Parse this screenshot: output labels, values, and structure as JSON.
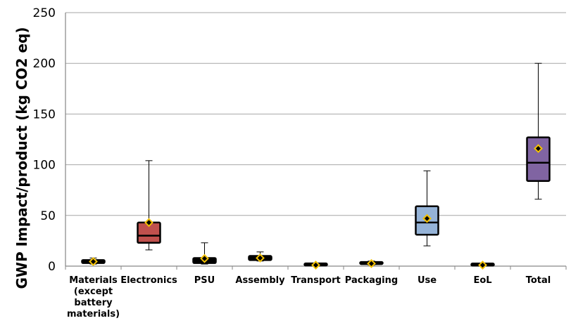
{
  "chart_data": {
    "type": "box",
    "ylabel": "GWP Impact/product (kg CO2 eq)",
    "xlabel": "",
    "ylim": [
      0,
      250
    ],
    "yticks": [
      0,
      50,
      100,
      150,
      200,
      250
    ],
    "grid": true,
    "categories": [
      "Materials (except battery materials)",
      "Electronics",
      "PSU",
      "Assembly",
      "Transport",
      "Packaging",
      "Use",
      "EoL",
      "Total"
    ],
    "category_lines": [
      [
        "Materials",
        "(except",
        "battery",
        "materials)"
      ],
      [
        "Electronics"
      ],
      [
        "PSU"
      ],
      [
        "Assembly"
      ],
      [
        "Transport"
      ],
      [
        "Packaging"
      ],
      [
        "Use"
      ],
      [
        "EoL"
      ],
      [
        "Total"
      ]
    ],
    "boxes": [
      {
        "min": 2,
        "q1": 3,
        "median": 4,
        "q3": 6,
        "max": 8,
        "mean": 4.5,
        "color": "#000000"
      },
      {
        "min": 16,
        "q1": 23,
        "median": 30,
        "q3": 43,
        "max": 104,
        "mean": 43,
        "color": "#c0504d"
      },
      {
        "min": 2,
        "q1": 3,
        "median": 5,
        "q3": 8,
        "max": 23,
        "mean": 7.5,
        "color": "#000000"
      },
      {
        "min": 5,
        "q1": 6,
        "median": 8,
        "q3": 10,
        "max": 14,
        "mean": 8,
        "color": "#000000"
      },
      {
        "min": 0.3,
        "q1": 0.6,
        "median": 1,
        "q3": 1.5,
        "max": 2,
        "mean": 1,
        "color": "#000000"
      },
      {
        "min": 1,
        "q1": 2,
        "median": 3,
        "q3": 4,
        "max": 5,
        "mean": 2.5,
        "color": "#000000"
      },
      {
        "min": 20,
        "q1": 31,
        "median": 43,
        "q3": 59,
        "max": 94,
        "mean": 47,
        "color": "#95b3d7"
      },
      {
        "min": 0.3,
        "q1": 0.5,
        "median": 1,
        "q3": 1.5,
        "max": 2,
        "mean": 1,
        "color": "#000000"
      },
      {
        "min": 66,
        "q1": 84,
        "median": 102,
        "q3": 127,
        "max": 200,
        "mean": 116,
        "color": "#8064a2"
      }
    ],
    "mean_marker_color": "#f2c000"
  }
}
